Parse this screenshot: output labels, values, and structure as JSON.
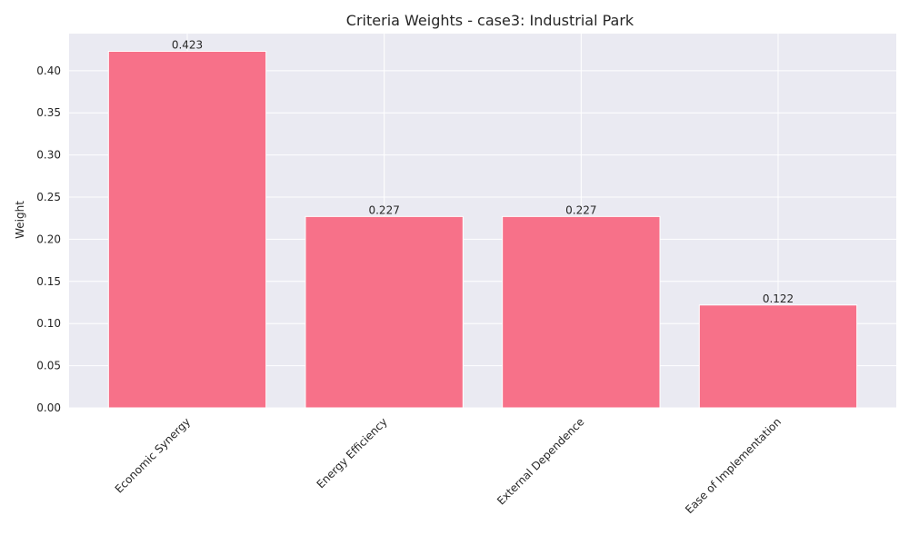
{
  "chart_data": {
    "type": "bar",
    "title": "Criteria Weights - case3: Industrial Park",
    "xlabel": "",
    "ylabel": "Weight",
    "categories": [
      "Economic Synergy",
      "Energy Efficiency",
      "External Dependence",
      "Ease of Implementation"
    ],
    "values": [
      0.423,
      0.227,
      0.227,
      0.122
    ],
    "value_labels": [
      "0.423",
      "0.227",
      "0.227",
      "0.122"
    ],
    "ylim": [
      0,
      0.444
    ],
    "yticks": [
      0.0,
      0.05,
      0.1,
      0.15,
      0.2,
      0.25,
      0.3,
      0.35,
      0.4
    ],
    "ytick_labels": [
      "0.00",
      "0.05",
      "0.10",
      "0.15",
      "0.20",
      "0.25",
      "0.30",
      "0.35",
      "0.40"
    ],
    "grid": true,
    "legend": "none",
    "bar_color": "#f77189",
    "plot_background": "#eaeaf2",
    "grid_color": "#ffffff"
  }
}
